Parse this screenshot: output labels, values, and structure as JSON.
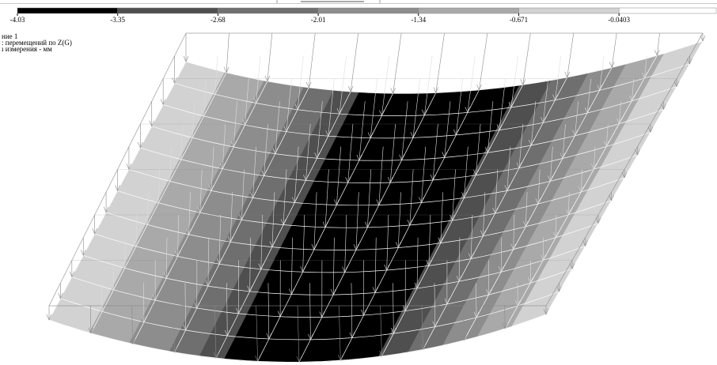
{
  "legend": {
    "labels": [
      "-4.03",
      "-3.35",
      "-2.68",
      "-2.01",
      "-1.34",
      "-0.671",
      "-0.0403"
    ],
    "colors": [
      "#000000",
      "#4f4f4f",
      "#6f6f6f",
      "#8d8d8d",
      "#a9a9a9",
      "#d2d2d2",
      "#ffffff"
    ]
  },
  "caption": {
    "lines": [
      "ние  1",
      ": перемещений по Z(G)",
      "ı измерения - мм"
    ]
  }
}
